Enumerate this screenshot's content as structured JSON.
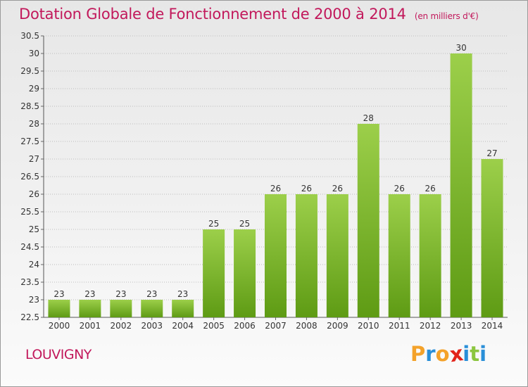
{
  "header": {
    "title": "Dotation Globale de Fonctionnement de 2000 à 2014",
    "unit": "(en milliers d'€)"
  },
  "footer": {
    "commune": "LOUVIGNY",
    "logo_letters": [
      "P",
      "r",
      "o",
      "x",
      "i",
      "t",
      "i"
    ]
  },
  "colors": {
    "title": "#c2185b",
    "bar_top": "#9ccf4a",
    "bar_bottom": "#5e9b14",
    "logo": [
      "#f4a22a",
      "#2a8fd8",
      "#f4a22a",
      "#e2231a",
      "#2a8fd8",
      "#8cc63f",
      "#2a8fd8"
    ]
  },
  "chart_data": {
    "type": "bar",
    "title": "Dotation Globale de Fonctionnement de 2000 à 2014",
    "subtitle": "(en milliers d'€)",
    "xlabel": "",
    "ylabel": "",
    "categories": [
      "2000",
      "2001",
      "2002",
      "2003",
      "2004",
      "2005",
      "2006",
      "2007",
      "2008",
      "2009",
      "2010",
      "2011",
      "2012",
      "2013",
      "2014"
    ],
    "values": [
      23,
      23,
      23,
      23,
      23,
      25,
      25,
      26,
      26,
      26,
      28,
      26,
      26,
      30,
      27
    ],
    "data_labels": [
      "23",
      "23",
      "23",
      "23",
      "23",
      "25",
      "25",
      "26",
      "26",
      "26",
      "28",
      "26",
      "26",
      "30",
      "27"
    ],
    "ylim": [
      22.5,
      30.5
    ],
    "yticks": [
      22.5,
      23,
      23.5,
      24,
      24.5,
      25,
      25.5,
      26,
      26.5,
      27,
      27.5,
      28,
      28.5,
      29,
      29.5,
      30,
      30.5
    ],
    "ytick_labels": [
      "22.5",
      "23",
      "23.5",
      "24",
      "24.5",
      "25",
      "25.5",
      "26",
      "26.5",
      "27",
      "27.5",
      "28",
      "28.5",
      "29",
      "29.5",
      "30",
      "30.5"
    ],
    "grid": "horizontal-dotted",
    "legend": "none"
  }
}
